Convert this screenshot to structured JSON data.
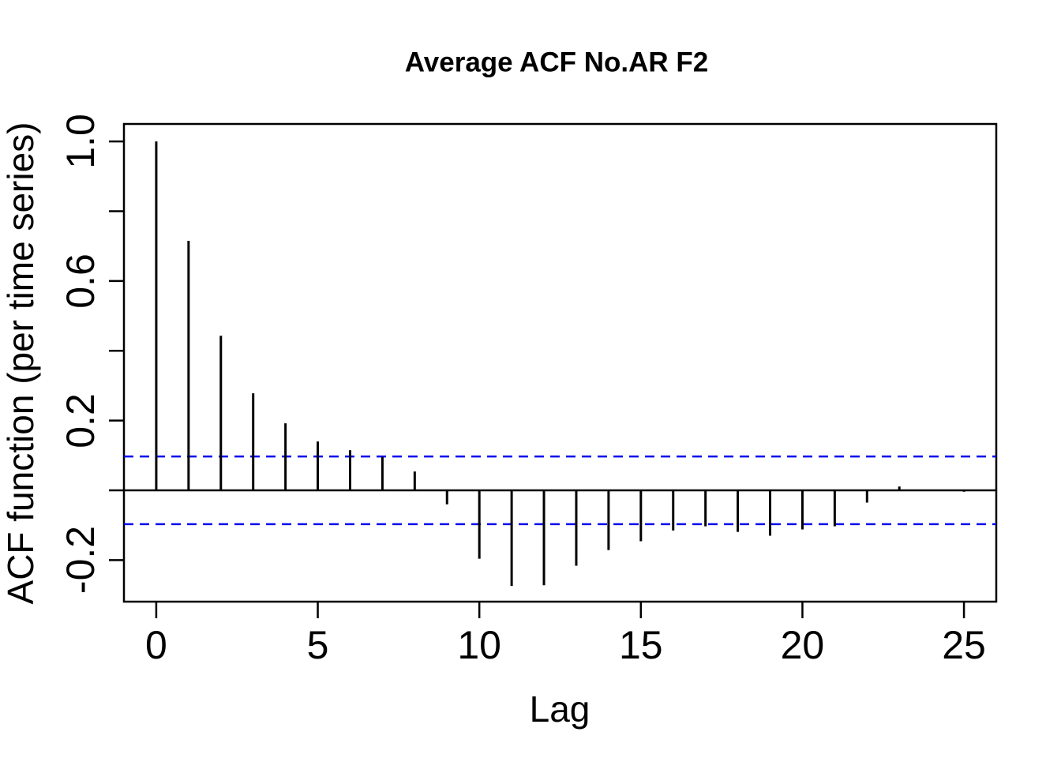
{
  "title": "Average ACF No.AR F2",
  "chart_data": {
    "type": "bar",
    "subtype": "acf-stem-plot",
    "title": "Average ACF No.AR F2",
    "xlabel": "Lag",
    "ylabel": "ACF function (per time series)",
    "x": [
      0,
      1,
      2,
      3,
      4,
      5,
      6,
      7,
      8,
      9,
      10,
      11,
      12,
      13,
      14,
      15,
      16,
      17,
      18,
      19,
      20,
      21,
      22,
      23,
      24,
      25
    ],
    "values": [
      1.0,
      0.715,
      0.443,
      0.278,
      0.192,
      0.14,
      0.115,
      0.096,
      0.054,
      -0.04,
      -0.196,
      -0.274,
      -0.272,
      -0.216,
      -0.171,
      -0.146,
      -0.115,
      -0.103,
      -0.119,
      -0.13,
      -0.112,
      -0.103,
      -0.035,
      0.011,
      0.001,
      -0.004
    ],
    "xlim": [
      -1,
      26
    ],
    "ylim": [
      -0.319,
      1.05
    ],
    "x_ticks": [
      0,
      5,
      10,
      15,
      20,
      25
    ],
    "x_tick_labels": [
      "0",
      "5",
      "10",
      "15",
      "20",
      "25"
    ],
    "y_ticks": [
      -0.2,
      0.0,
      0.2,
      0.4,
      0.6,
      0.8,
      1.0
    ],
    "y_tick_labels": [
      "-0.2",
      "",
      "0.2",
      "",
      "0.6",
      "",
      "1.0"
    ],
    "zero_line": 0,
    "confidence_bounds": {
      "upper": 0.097,
      "lower": -0.097,
      "line_style": "dashed"
    },
    "grid": false,
    "legend": null,
    "colors": {
      "spike": "#000000",
      "box": "#000000",
      "ci_line": "#0000EE",
      "background": "#ffffff"
    }
  }
}
